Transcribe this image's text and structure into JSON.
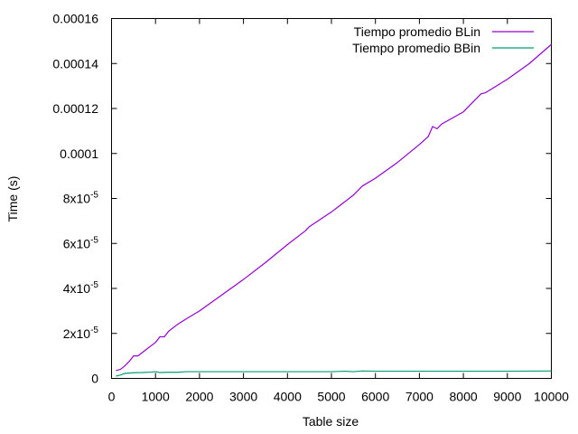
{
  "chart_data": {
    "type": "line",
    "title": "",
    "xlabel": "Table size",
    "ylabel": "Time (s)",
    "xlim": [
      0,
      10000
    ],
    "ylim": [
      0,
      0.00016
    ],
    "grid": false,
    "legend_position": "top-right",
    "x_ticks": [
      {
        "value": 0,
        "label": "0"
      },
      {
        "value": 1000,
        "label": "1000"
      },
      {
        "value": 2000,
        "label": "2000"
      },
      {
        "value": 3000,
        "label": "3000"
      },
      {
        "value": 4000,
        "label": "4000"
      },
      {
        "value": 5000,
        "label": "5000"
      },
      {
        "value": 6000,
        "label": "6000"
      },
      {
        "value": 7000,
        "label": "7000"
      },
      {
        "value": 8000,
        "label": "8000"
      },
      {
        "value": 9000,
        "label": "9000"
      },
      {
        "value": 10000,
        "label": "10000"
      }
    ],
    "y_ticks": [
      {
        "value": 0,
        "label": "0",
        "exp": ""
      },
      {
        "value": 2e-05,
        "label": "2x10",
        "exp": "-5"
      },
      {
        "value": 4e-05,
        "label": "4x10",
        "exp": "-5"
      },
      {
        "value": 6e-05,
        "label": "6x10",
        "exp": "-5"
      },
      {
        "value": 8e-05,
        "label": "8x10",
        "exp": "-5"
      },
      {
        "value": 0.0001,
        "label": "0.0001",
        "exp": ""
      },
      {
        "value": 0.00012,
        "label": "0.00012",
        "exp": ""
      },
      {
        "value": 0.00014,
        "label": "0.00014",
        "exp": ""
      },
      {
        "value": 0.00016,
        "label": "0.00016",
        "exp": ""
      }
    ],
    "series": [
      {
        "name": "Tiempo promedio BLin",
        "color": "#9400d3",
        "x": [
          100,
          200,
          300,
          400,
          500,
          600,
          700,
          800,
          900,
          1000,
          1100,
          1200,
          1300,
          1500,
          1700,
          2000,
          2500,
          3000,
          3500,
          4000,
          4400,
          4500,
          5000,
          5500,
          5700,
          6000,
          6500,
          7000,
          7200,
          7300,
          7400,
          7500,
          8000,
          8400,
          8500,
          9000,
          9500,
          10000
        ],
        "y": [
          3.5e-06,
          4e-06,
          5.5e-06,
          7.5e-06,
          1e-05,
          1e-05,
          1.15e-05,
          1.3e-05,
          1.45e-05,
          1.6e-05,
          1.85e-05,
          1.85e-05,
          2.1e-05,
          2.4e-05,
          2.65e-05,
          3e-05,
          3.7e-05,
          4.4e-05,
          5.15e-05,
          5.95e-05,
          6.55e-05,
          6.75e-05,
          7.4e-05,
          8.15e-05,
          8.55e-05,
          8.9e-05,
          9.6e-05,
          0.000104,
          0.0001075,
          0.000112,
          0.000111,
          0.000113,
          0.0001185,
          0.0001265,
          0.000127,
          0.000133,
          0.00014,
          0.0001485
        ]
      },
      {
        "name": "Tiempo promedio BBin",
        "color": "#009e73",
        "x": [
          100,
          200,
          300,
          500,
          700,
          900,
          1000,
          1100,
          1300,
          1500,
          1700,
          2000,
          3000,
          4000,
          5000,
          5300,
          5500,
          5700,
          6000,
          7000,
          8000,
          9000,
          10000
        ],
        "y": [
          1e-06,
          1.5e-06,
          2.2e-06,
          2.5e-06,
          2.6e-06,
          2.8e-06,
          3e-06,
          2.6e-06,
          2.7e-06,
          2.7e-06,
          3e-06,
          3e-06,
          3e-06,
          3e-06,
          3e-06,
          3.2e-06,
          3e-06,
          3.3e-06,
          3.2e-06,
          3.2e-06,
          3.2e-06,
          3.2e-06,
          3.3e-06
        ]
      }
    ]
  }
}
